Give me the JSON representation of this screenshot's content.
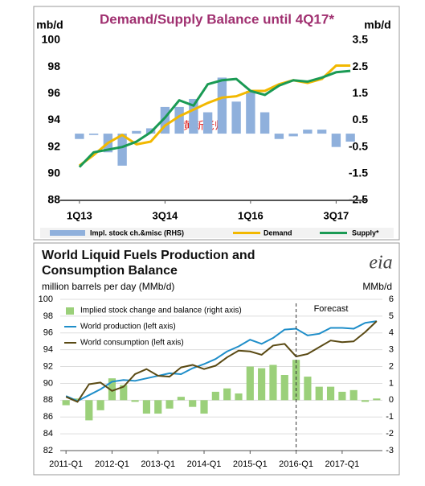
{
  "chart_data": [
    {
      "type": "combo",
      "title": "Demand/Supply Balance until 4Q17*",
      "ylabel": "mb/d",
      "y2label": "mb/d",
      "watermark": "黄新老师",
      "categories": [
        "1Q13",
        null,
        null,
        null,
        null,
        null,
        "3Q14",
        null,
        null,
        null,
        null,
        null,
        "1Q16",
        null,
        null,
        null,
        null,
        null,
        "3Q17",
        null
      ],
      "ylim": [
        88,
        100
      ],
      "yticks": [
        88,
        90,
        92,
        94,
        96,
        98,
        100
      ],
      "y2lim": [
        -2.5,
        3.5
      ],
      "y2ticks": [
        -2.5,
        -1.5,
        -0.5,
        0.5,
        1.5,
        2.5,
        3.5
      ],
      "grid": false,
      "series": [
        {
          "name": "Impl. stock ch.&misc (RHS)",
          "type": "bar",
          "axis": "y2",
          "color": "#8fb0dc",
          "values": [
            -0.2,
            -0.05,
            -0.7,
            -1.2,
            0.1,
            0.2,
            1.0,
            1.0,
            1.3,
            0.8,
            2.1,
            1.2,
            1.6,
            0.8,
            -0.2,
            -0.1,
            0.15,
            0.15,
            -0.5,
            -0.3
          ]
        },
        {
          "name": "Demand",
          "type": "line",
          "color": "#f2b800",
          "values": [
            90.6,
            91.4,
            92.3,
            92.9,
            92.2,
            92.4,
            93.6,
            94.3,
            94.8,
            95.3,
            95.7,
            95.8,
            96.2,
            96.2,
            96.7,
            97.0,
            96.8,
            97.1,
            98.1,
            98.1
          ]
        },
        {
          "name": "Supply*",
          "type": "line",
          "color": "#1a9a54",
          "values": [
            90.5,
            91.6,
            91.8,
            92.0,
            92.4,
            93.1,
            94.2,
            95.5,
            95.1,
            96.7,
            97.0,
            97.1,
            96.2,
            95.9,
            96.6,
            97.0,
            96.9,
            97.2,
            97.6,
            97.7
          ]
        }
      ]
    },
    {
      "type": "combo",
      "title": "World Liquid Fuels Production and Consumption Balance",
      "subtitle": "million barrels per day (MMb/d)",
      "y2label": "MMb/d",
      "logo": "eia",
      "categories": [
        "2011-Q1",
        null,
        null,
        null,
        "2012-Q1",
        null,
        null,
        null,
        "2013-Q1",
        null,
        null,
        null,
        "2014-Q1",
        null,
        null,
        null,
        "2015-Q1",
        null,
        null,
        null,
        "2016-Q1",
        null,
        null,
        null,
        "2017-Q1",
        null,
        null,
        null
      ],
      "ylim": [
        82,
        100
      ],
      "yticks": [
        82,
        84,
        86,
        88,
        90,
        92,
        94,
        96,
        98,
        100
      ],
      "y2lim": [
        -3,
        6
      ],
      "y2ticks": [
        -3,
        -2,
        -1,
        0,
        1,
        2,
        3,
        4,
        5,
        6
      ],
      "grid": true,
      "annotation": {
        "text": "Forecast",
        "x": "2016-Q1"
      },
      "series": [
        {
          "name": "Implied stock change and balance (right axis)",
          "type": "bar",
          "axis": "y2",
          "color": "#9bd07a",
          "values": [
            -0.3,
            0.1,
            -1.2,
            -0.6,
            1.3,
            0.9,
            -0.1,
            -0.8,
            -0.8,
            -0.5,
            0.2,
            -0.4,
            -0.8,
            0.5,
            0.7,
            0.4,
            2.0,
            1.9,
            2.1,
            1.5,
            2.4,
            1.4,
            0.8,
            0.8,
            0.5,
            0.6,
            -0.1,
            0.1
          ]
        },
        {
          "name": "World production (left axis)",
          "type": "line",
          "color": "#1f8ec9",
          "values": [
            88.5,
            87.9,
            88.6,
            89.3,
            90.2,
            90.4,
            90.3,
            90.6,
            90.9,
            91.2,
            91.1,
            91.8,
            92.3,
            92.9,
            93.8,
            94.4,
            95.2,
            94.7,
            95.4,
            96.4,
            96.5,
            95.7,
            95.9,
            96.6,
            96.6,
            96.5,
            97.2,
            97.4
          ]
        },
        {
          "name": "World consumption (left axis)",
          "type": "line",
          "color": "#5a4a14",
          "values": [
            88.4,
            87.8,
            89.9,
            90.1,
            89.1,
            89.6,
            91.1,
            91.7,
            90.9,
            90.8,
            91.9,
            92.2,
            91.7,
            92.1,
            93.1,
            93.9,
            93.8,
            93.4,
            94.5,
            94.7,
            93.2,
            93.5,
            94.3,
            95.1,
            94.9,
            95.0,
            96.1,
            97.4
          ]
        }
      ]
    }
  ]
}
